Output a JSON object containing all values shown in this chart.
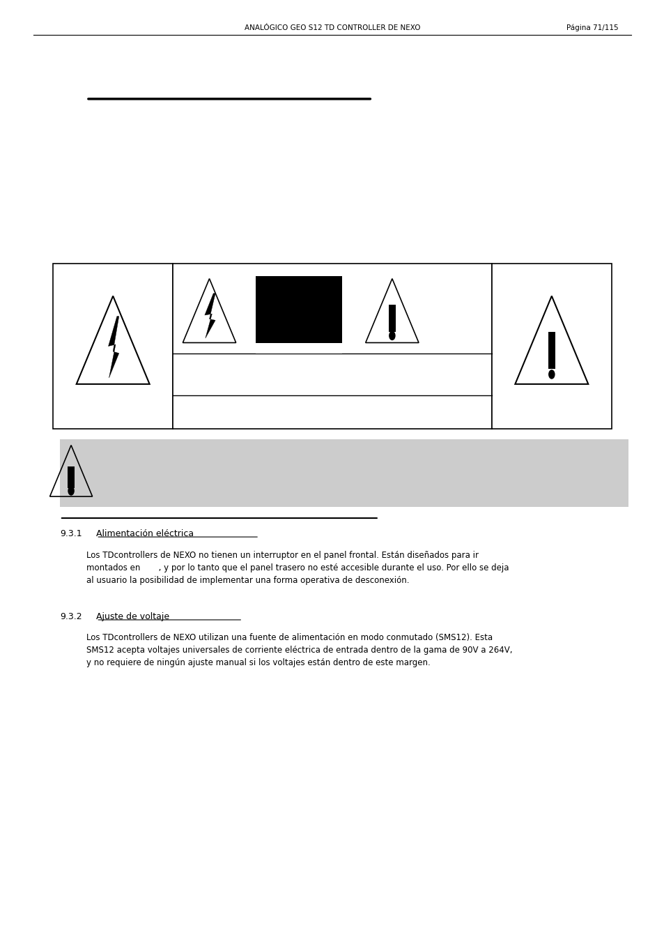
{
  "header_left": "ANALÓGICO GEO S12 TD CONTROLLER DE NEXO",
  "header_right": "Página 71/115",
  "section_931_label": "9.3.1",
  "section_931_title": "Alimentación eléctrica",
  "section_931_text": "Los TDcontrollers de NEXO no tienen un interruptor en el panel frontal. Están diseñados para ir\nmontados en       , y por lo tanto que el panel trasero no esté accesible durante el uso. Por ello se deja\nal usuario la posibilidad de implementar una forma operativa de desconexión.",
  "section_932_label": "9.3.2",
  "section_932_title": "Ajuste de voltaje",
  "section_932_text": "Los TDcontrollers de NEXO utilizan una fuente de alimentación en modo conmutado (SMS12). Esta\nSMS12 acepta voltajes universales de corriente eléctrica de entrada dentro de la gama de 90V a 264V,\ny no requiere de ningún ajuste manual si los voltajes están dentro de este margen.",
  "bg_color": "#ffffff",
  "text_color": "#000000",
  "gray_box_color": "#cccccc",
  "header_fontsize": 7.5,
  "body_fontsize": 8.5,
  "section_fontsize": 9.0
}
